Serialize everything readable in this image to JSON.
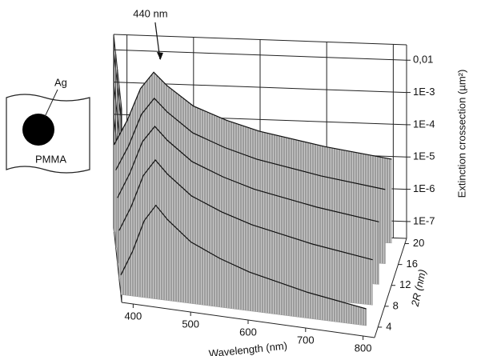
{
  "chart_data": {
    "type": "surface3d",
    "xlabel": "Wavelength (nm)",
    "ylabel": "2R (nm)",
    "zlabel": "Extinction crossection (µm²)",
    "annotation": {
      "text": "440 nm",
      "x": 440
    },
    "x": [
      380,
      400,
      420,
      440,
      460,
      500,
      550,
      600,
      700,
      800
    ],
    "y": [
      4,
      8,
      12,
      16,
      20
    ],
    "values": [
      [
        1.2e-07,
        7.2e-07,
        7.2e-06,
        2.4e-05,
        9.6e-06,
        2.4e-06,
        9.6e-07,
        4.8e-07,
        1.9e-07,
        1e-07
      ],
      [
        9.5e-07,
        5.7e-06,
        5.7e-05,
        0.00019,
        7.6e-05,
        1.9e-05,
        7.6e-06,
        3.8e-06,
        1.5e-06,
        7.6e-07
      ],
      [
        3.2e-06,
        2e-05,
        0.0002,
        0.00065,
        0.00026,
        6.5e-05,
        2.6e-05,
        1.3e-05,
        5.2e-06,
        2.6e-06
      ],
      [
        7.5e-06,
        4.5e-05,
        0.00045,
        0.0015,
        0.0006,
        0.00015,
        6e-05,
        3e-05,
        1.2e-05,
        6e-06
      ],
      [
        1.5e-05,
        9e-05,
        0.0009,
        0.003,
        0.0012,
        0.0003,
        0.00012,
        6e-05,
        2.4e-05,
        1.2e-05
      ]
    ],
    "color": "#9a9a9a",
    "xlim": [
      380,
      820
    ],
    "xticks": [
      400,
      500,
      600,
      700,
      800
    ],
    "ylim": [
      2,
      21
    ],
    "yticks": [
      4,
      8,
      12,
      16,
      20
    ],
    "zlim": [
      3e-08,
      0.03
    ],
    "zscale": "log",
    "zticks": [
      {
        "value": 1e-07,
        "label": "1E-7"
      },
      {
        "value": 1e-06,
        "label": "1E-6"
      },
      {
        "value": 1e-05,
        "label": "1E-5"
      },
      {
        "value": 0.0001,
        "label": "1E-4"
      },
      {
        "value": 0.001,
        "label": "1E-3"
      },
      {
        "value": 0.01,
        "label": "0,01"
      }
    ],
    "grid": true
  },
  "inset": {
    "particle": "Ag",
    "matrix": "PMMA"
  }
}
